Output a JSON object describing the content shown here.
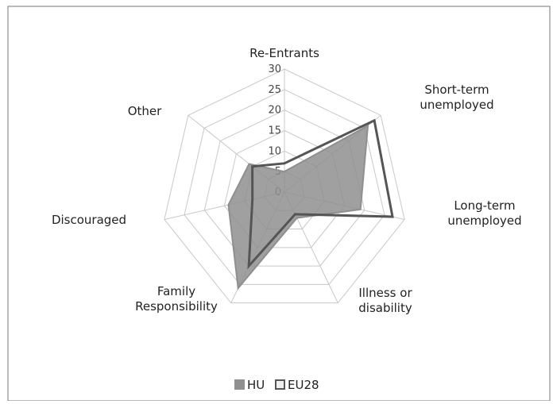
{
  "chart_data": {
    "type": "radar",
    "categories": [
      "Re-Entrants",
      "Short-term unemployed",
      "Long-term unemployed",
      "Illness or disability",
      "Family Responsibility",
      "Discouraged",
      "Other"
    ],
    "series": [
      {
        "name": "HU",
        "color": "#8f8f8f",
        "values": [
          5,
          26,
          19,
          7,
          26,
          14,
          11
        ]
      },
      {
        "name": "EU28",
        "color": "#555555",
        "values": [
          7,
          28,
          27,
          6,
          20,
          8,
          10
        ]
      }
    ],
    "ylim": [
      0,
      30
    ],
    "yticks": [
      0,
      5,
      10,
      15,
      20,
      25,
      30
    ],
    "legend": "bottom"
  }
}
